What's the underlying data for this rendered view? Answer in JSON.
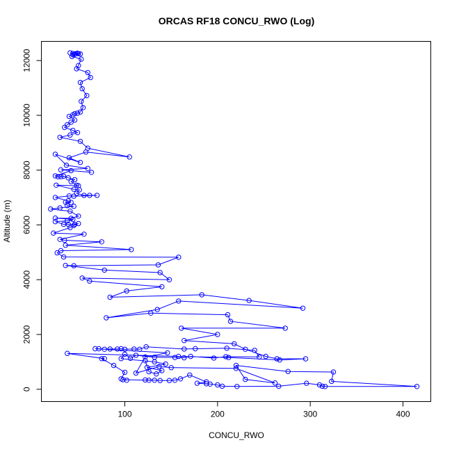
{
  "chart_data": {
    "type": "line",
    "title": "ORCAS RF18 CONCU_RWO (Log)",
    "xlabel": "CONCU_RWO",
    "ylabel": "Altitude (m)",
    "xlim": [
      10,
      430
    ],
    "ylim": [
      -450,
      12700
    ],
    "x_ticks": [
      100,
      200,
      300,
      400
    ],
    "y_ticks": [
      0,
      2000,
      4000,
      6000,
      8000,
      10000,
      12000
    ],
    "grid": false,
    "legend": "none",
    "series_color": "#0000ff",
    "series": [
      {
        "points": [
          [
            41,
            12280
          ],
          [
            44,
            12260
          ],
          [
            47,
            12250
          ],
          [
            49,
            12270
          ],
          [
            52,
            12240
          ],
          [
            50,
            12250
          ],
          [
            46,
            12230
          ],
          [
            44,
            12210
          ],
          [
            43,
            12150
          ],
          [
            53,
            12050
          ],
          [
            50,
            11820
          ],
          [
            48,
            11700
          ],
          [
            60,
            11560
          ],
          [
            63,
            11380
          ],
          [
            52,
            11200
          ],
          [
            54,
            10970
          ],
          [
            59,
            10720
          ],
          [
            53,
            10510
          ],
          [
            55,
            10280
          ],
          [
            52,
            10120
          ],
          [
            49,
            10080
          ],
          [
            46,
            10060
          ],
          [
            44,
            10020
          ],
          [
            40,
            9960
          ],
          [
            46,
            9830
          ],
          [
            42,
            9750
          ],
          [
            38,
            9660
          ],
          [
            35,
            9560
          ],
          [
            44,
            9450
          ],
          [
            49,
            9370
          ],
          [
            41,
            9280
          ],
          [
            30,
            9200
          ],
          [
            52,
            9050
          ],
          [
            60,
            8800
          ],
          [
            105,
            8480
          ],
          [
            58,
            8660
          ],
          [
            40,
            8450
          ],
          [
            52,
            8280
          ],
          [
            25,
            8580
          ],
          [
            37,
            8180
          ],
          [
            60,
            8060
          ],
          [
            31,
            8010
          ],
          [
            64,
            7920
          ],
          [
            42,
            7980
          ],
          [
            25,
            7790
          ],
          [
            28,
            7760
          ],
          [
            31,
            7760
          ],
          [
            34,
            7780
          ],
          [
            39,
            7720
          ],
          [
            46,
            7650
          ],
          [
            42,
            7580
          ],
          [
            48,
            7450
          ],
          [
            50,
            7430
          ],
          [
            26,
            7450
          ],
          [
            45,
            7300
          ],
          [
            51,
            7280
          ],
          [
            48,
            7150
          ],
          [
            56,
            7080
          ],
          [
            62,
            7080
          ],
          [
            70,
            7080
          ],
          [
            45,
            7050
          ],
          [
            40,
            7060
          ],
          [
            25,
            7000
          ],
          [
            39,
            6880
          ],
          [
            42,
            6820
          ],
          [
            36,
            6830
          ],
          [
            38,
            6700
          ],
          [
            45,
            6680
          ],
          [
            30,
            6620
          ],
          [
            20,
            6580
          ],
          [
            41,
            6500
          ],
          [
            50,
            6320
          ],
          [
            42,
            6240
          ],
          [
            25,
            6250
          ],
          [
            44,
            6200
          ],
          [
            38,
            6150
          ],
          [
            25,
            6120
          ],
          [
            34,
            6020
          ],
          [
            39,
            6020
          ],
          [
            46,
            6020
          ],
          [
            50,
            6050
          ],
          [
            45,
            5980
          ],
          [
            41,
            5900
          ],
          [
            23,
            5700
          ],
          [
            56,
            5660
          ],
          [
            30,
            5470
          ],
          [
            35,
            5440
          ],
          [
            75,
            5380
          ],
          [
            36,
            5260
          ],
          [
            107,
            5100
          ],
          [
            31,
            5060
          ],
          [
            27,
            4980
          ],
          [
            34,
            4830
          ],
          [
            158,
            4820
          ],
          [
            136,
            4540
          ],
          [
            45,
            4510
          ],
          [
            36,
            4520
          ],
          [
            78,
            4350
          ],
          [
            138,
            4260
          ],
          [
            148,
            4000
          ],
          [
            54,
            4060
          ],
          [
            62,
            3950
          ],
          [
            140,
            3740
          ],
          [
            102,
            3590
          ],
          [
            84,
            3360
          ],
          [
            183,
            3450
          ],
          [
            234,
            3240
          ],
          [
            292,
            2960
          ],
          [
            158,
            3220
          ],
          [
            135,
            2910
          ],
          [
            80,
            2610
          ],
          [
            128,
            2780
          ],
          [
            211,
            2720
          ],
          [
            214,
            2480
          ],
          [
            273,
            2230
          ],
          [
            161,
            2230
          ],
          [
            200,
            2000
          ],
          [
            164,
            1780
          ],
          [
            218,
            1660
          ],
          [
            230,
            1460
          ],
          [
            252,
            1200
          ],
          [
            264,
            1110
          ],
          [
            295,
            1110
          ],
          [
            267,
            1070
          ],
          [
            212,
            1160
          ],
          [
            158,
            1200
          ],
          [
            38,
            1310
          ],
          [
            78,
            1120
          ],
          [
            75,
            1120
          ],
          [
            88,
            870
          ],
          [
            100,
            620
          ],
          [
            96,
            380
          ],
          [
            102,
            330
          ],
          [
            98,
            350
          ],
          [
            126,
            330
          ],
          [
            122,
            340
          ],
          [
            132,
            330
          ],
          [
            138,
            320
          ],
          [
            148,
            320
          ],
          [
            154,
            330
          ],
          [
            160,
            380
          ],
          [
            170,
            520
          ],
          [
            188,
            270
          ],
          [
            178,
            220
          ],
          [
            188,
            200
          ],
          [
            192,
            190
          ],
          [
            200,
            160
          ],
          [
            205,
            110
          ],
          [
            221,
            100
          ],
          [
            266,
            110
          ],
          [
            296,
            220
          ],
          [
            310,
            160
          ],
          [
            313,
            110
          ],
          [
            316,
            100
          ],
          [
            415,
            100
          ],
          [
            323,
            290
          ],
          [
            325,
            630
          ],
          [
            276,
            650
          ],
          [
            220,
            870
          ],
          [
            230,
            360
          ],
          [
            262,
            230
          ],
          [
            220,
            760
          ],
          [
            150,
            790
          ],
          [
            137,
            830
          ],
          [
            112,
            590
          ],
          [
            122,
            1180
          ],
          [
            146,
            1330
          ],
          [
            68,
            1480
          ],
          [
            72,
            1480
          ],
          [
            78,
            1460
          ],
          [
            84,
            1470
          ],
          [
            92,
            1470
          ],
          [
            96,
            1480
          ],
          [
            100,
            1460
          ],
          [
            110,
            1470
          ],
          [
            116,
            1460
          ],
          [
            123,
            1550
          ],
          [
            164,
            1470
          ],
          [
            176,
            1480
          ],
          [
            210,
            1500
          ],
          [
            240,
            1420
          ],
          [
            245,
            1180
          ],
          [
            209,
            1190
          ],
          [
            196,
            1140
          ],
          [
            171,
            1200
          ],
          [
            164,
            1150
          ],
          [
            154,
            1160
          ],
          [
            132,
            1170
          ],
          [
            112,
            1240
          ],
          [
            106,
            1130
          ],
          [
            100,
            1280
          ],
          [
            96,
            1120
          ],
          [
            132,
            1000
          ],
          [
            144,
            920
          ],
          [
            124,
            800
          ],
          [
            140,
            680
          ],
          [
            134,
            560
          ],
          [
            126,
            640
          ],
          [
            122,
            1040
          ]
        ]
      }
    ]
  }
}
